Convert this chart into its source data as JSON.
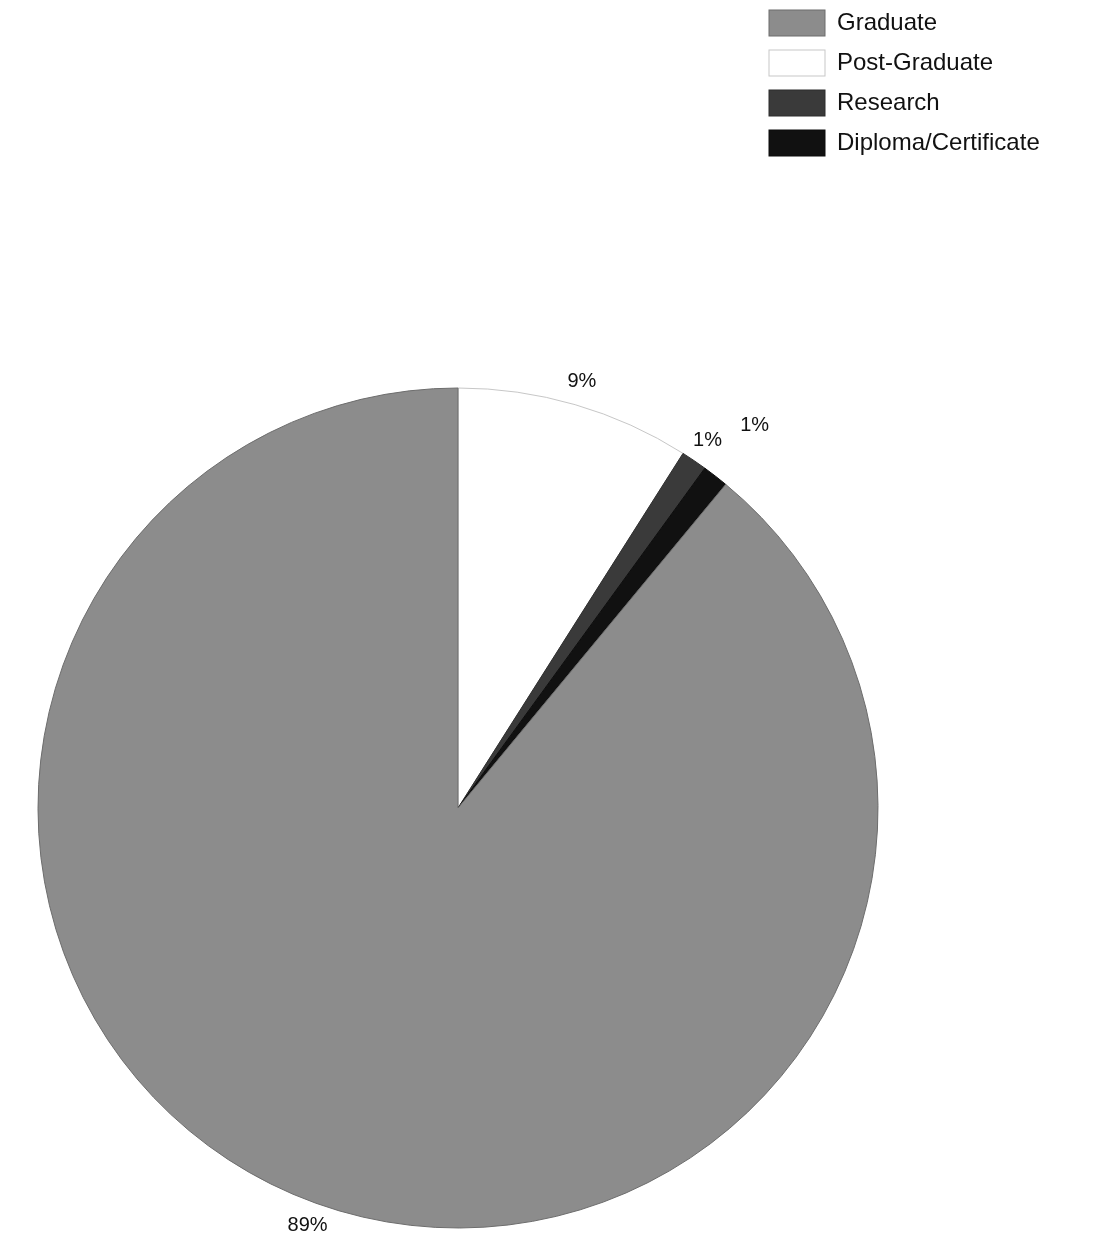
{
  "chart_data": {
    "type": "pie",
    "categories": [
      "Post-Graduate",
      "Research",
      "Diploma/Certificate",
      "Graduate"
    ],
    "values": [
      9,
      1,
      1,
      89
    ],
    "colors": [
      "#ffffff",
      "#3a3a3a",
      "#111111",
      "#8c8c8c"
    ],
    "value_labels": [
      "9%",
      "1%",
      "1%",
      "89%"
    ],
    "legend": "top right"
  }
}
